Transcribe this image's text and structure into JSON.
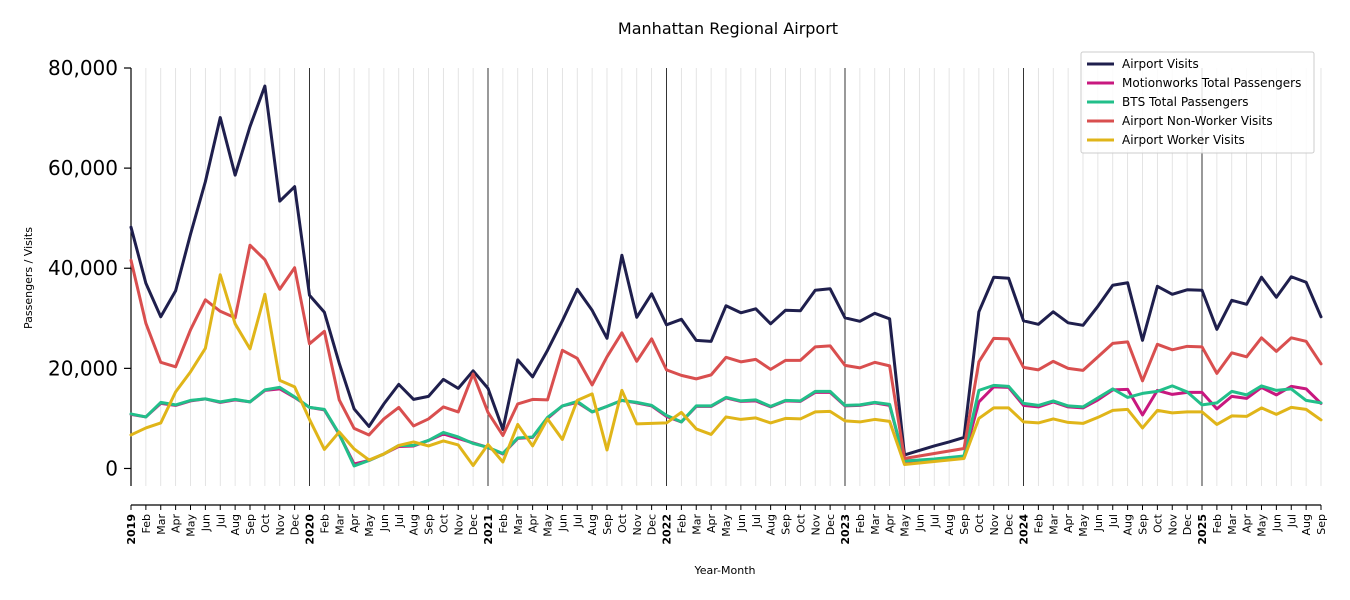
{
  "chart_data": {
    "type": "line",
    "title": "Manhattan Regional Airport",
    "xlabel": "Year-Month",
    "ylabel": "Passengers / Visits",
    "ylim": [
      -3500,
      80000
    ],
    "yticks": [
      0,
      20000,
      40000,
      60000,
      80000
    ],
    "ytick_labels": [
      "0",
      "20,000",
      "40,000",
      "60,000",
      "80,000"
    ],
    "grid": "vertical-monthly",
    "legend_position": "top-right",
    "x": [
      "2019",
      "Feb",
      "Mar",
      "Apr",
      "May",
      "Jun",
      "Jul",
      "Aug",
      "Sep",
      "Oct",
      "Nov",
      "Dec",
      "2020",
      "Feb",
      "Mar",
      "Apr",
      "May",
      "Jun",
      "Jul",
      "Aug",
      "Sep",
      "Oct",
      "Nov",
      "Dec",
      "2021",
      "Feb",
      "Mar",
      "Apr",
      "May",
      "Jun",
      "Jul",
      "Aug",
      "Sep",
      "Oct",
      "Nov",
      "Dec",
      "2022",
      "Feb",
      "Mar",
      "Apr",
      "May",
      "Jun",
      "Jul",
      "Aug",
      "Sep",
      "Oct",
      "Nov",
      "Dec",
      "2023",
      "Feb",
      "Mar",
      "Apr",
      "May",
      "Jun",
      "Jul",
      "Aug",
      "Sep",
      "Oct",
      "Nov",
      "Dec",
      "2024",
      "Feb",
      "Mar",
      "Apr",
      "May",
      "Jun",
      "Jul",
      "Aug",
      "Sep",
      "Oct",
      "Nov",
      "Dec",
      "2025",
      "Feb",
      "Mar",
      "Apr",
      "May",
      "Jun",
      "Jul",
      "Aug",
      "Sep"
    ],
    "series": [
      {
        "name": "Airport Visits",
        "color": "#1f1f4d",
        "values": [
          48200,
          37000,
          30300,
          35500,
          46800,
          57300,
          70100,
          58600,
          68300,
          76400,
          53400,
          56300,
          34600,
          31200,
          21000,
          11900,
          8400,
          12900,
          16800,
          13800,
          14400,
          17800,
          16000,
          19500,
          16000,
          7800,
          21700,
          18300,
          23600,
          29500,
          35800,
          31600,
          26000,
          42600,
          30200,
          34900,
          28700,
          29800,
          25600,
          25400,
          32500,
          31100,
          31900,
          28900,
          31600,
          31500,
          35600,
          35900,
          30100,
          29400,
          31000,
          29900,
          2700,
          3600,
          4500,
          5300,
          6200,
          31300,
          38200,
          38000,
          29500,
          28800,
          31300,
          29100,
          28600,
          32400,
          36600,
          37100,
          25600,
          36400,
          34800,
          35700,
          35600,
          27800,
          33600,
          32800,
          38200,
          34200,
          38300,
          37200,
          30300
        ]
      },
      {
        "name": "Motionworks Total Passengers",
        "color": "#c8187f",
        "values": [
          10800,
          10300,
          13000,
          12600,
          13500,
          13900,
          13200,
          13700,
          13300,
          15600,
          15900,
          14200,
          12200,
          11700,
          6800,
          900,
          1600,
          2900,
          4400,
          4500,
          5600,
          6900,
          6000,
          5100,
          4200,
          2900,
          6000,
          6200,
          10000,
          12500,
          13200,
          11300,
          12400,
          13600,
          13100,
          12500,
          10400,
          9300,
          12400,
          12400,
          14100,
          13400,
          13500,
          12300,
          13500,
          13400,
          15200,
          15200,
          12500,
          12600,
          13100,
          12600,
          1400,
          1600,
          1800,
          2000,
          2200,
          13300,
          16300,
          16200,
          12600,
          12300,
          13300,
          12300,
          12100,
          13700,
          15700,
          15800,
          10700,
          15600,
          14800,
          15200,
          15200,
          11900,
          14400,
          14000,
          16200,
          14700,
          16400,
          15900,
          13000
        ]
      },
      {
        "name": "BTS Total Passengers",
        "color": "#22bf8a",
        "values": [
          10900,
          10300,
          13200,
          12700,
          13600,
          13900,
          13300,
          13800,
          13300,
          15700,
          16200,
          14300,
          12200,
          11800,
          6900,
          500,
          1600,
          2900,
          4600,
          4600,
          5600,
          7200,
          6300,
          5000,
          4200,
          3000,
          6100,
          6300,
          10200,
          12500,
          13400,
          11300,
          12400,
          13600,
          13200,
          12600,
          10600,
          9300,
          12500,
          12500,
          14200,
          13500,
          13700,
          12400,
          13600,
          13500,
          15400,
          15400,
          12600,
          12700,
          13200,
          12800,
          1500,
          1700,
          1900,
          2200,
          2500,
          15600,
          16600,
          16400,
          13000,
          12600,
          13500,
          12500,
          12300,
          14100,
          15900,
          14200,
          15000,
          15400,
          16500,
          15300,
          12700,
          13100,
          15400,
          14700,
          16500,
          15600,
          15900,
          13600,
          13100
        ]
      },
      {
        "name": "Airport Non-Worker Visits",
        "color": "#d94f4f",
        "values": [
          41600,
          29000,
          21200,
          20300,
          27700,
          33700,
          31400,
          30100,
          44600,
          41700,
          35800,
          40100,
          24900,
          27400,
          13700,
          8000,
          6700,
          9900,
          12200,
          8500,
          9900,
          12300,
          11300,
          18900,
          11200,
          6600,
          12900,
          13800,
          13700,
          23600,
          22000,
          16700,
          22300,
          27100,
          21400,
          25900,
          19700,
          18600,
          17900,
          18700,
          22200,
          21300,
          21800,
          19800,
          21600,
          21600,
          24300,
          24500,
          20600,
          20100,
          21200,
          20500,
          2000,
          2500,
          3000,
          3500,
          4000,
          21300,
          26000,
          25900,
          20200,
          19700,
          21400,
          20000,
          19600,
          22300,
          25000,
          25300,
          17500,
          24800,
          23700,
          24400,
          24300,
          19000,
          23100,
          22300,
          26100,
          23400,
          26100,
          25400,
          20900
        ]
      },
      {
        "name": "Airport Worker Visits",
        "color": "#e0b519",
        "values": [
          6700,
          8100,
          9100,
          15300,
          19300,
          24000,
          38700,
          28900,
          23900,
          34800,
          17600,
          16300,
          9800,
          3800,
          7300,
          3900,
          1700,
          2900,
          4600,
          5300,
          4500,
          5500,
          4700,
          600,
          4800,
          1300,
          8800,
          4500,
          9900,
          5800,
          13600,
          14900,
          3700,
          15600,
          8900,
          9000,
          9100,
          11200,
          7900,
          6800,
          10300,
          9800,
          10100,
          9100,
          10000,
          9900,
          11300,
          11400,
          9500,
          9300,
          9800,
          9400,
          800,
          1100,
          1400,
          1700,
          2000,
          10000,
          12100,
          12100,
          9300,
          9100,
          9900,
          9200,
          9000,
          10200,
          11600,
          11800,
          8100,
          11600,
          11100,
          11300,
          11300,
          8800,
          10500,
          10400,
          12100,
          10800,
          12200,
          11800,
          9700
        ]
      }
    ]
  }
}
